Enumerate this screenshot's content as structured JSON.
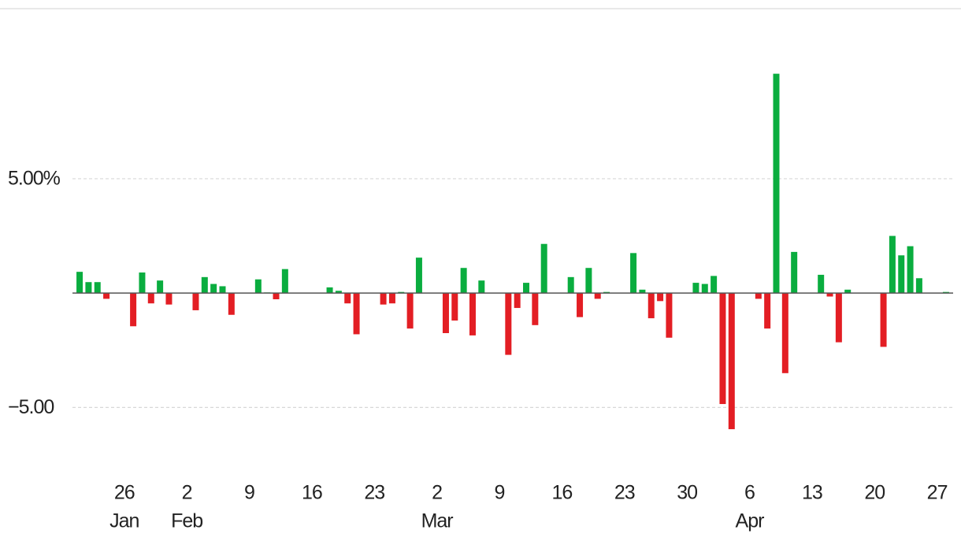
{
  "chart_data": {
    "type": "bar",
    "positive_color": "#0aad3f",
    "negative_color": "#e31e24",
    "x": [
      21,
      22,
      23,
      24,
      27,
      28,
      29,
      30,
      31,
      34,
      35,
      36,
      37,
      38,
      41,
      42,
      43,
      44,
      45,
      49,
      50,
      51,
      52,
      55,
      56,
      57,
      58,
      59,
      62,
      63,
      64,
      65,
      66,
      69,
      70,
      71,
      72,
      73,
      76,
      77,
      78,
      79,
      80,
      83,
      84,
      85,
      86,
      87,
      90,
      91,
      92,
      93,
      94,
      97,
      98,
      99,
      100,
      101,
      104,
      105,
      106,
      107,
      111,
      112,
      113,
      114,
      115,
      118
    ],
    "values": [
      0.93,
      0.48,
      0.48,
      -0.25,
      -1.45,
      0.9,
      -0.45,
      0.55,
      -0.5,
      -0.75,
      0.7,
      0.4,
      0.3,
      -0.95,
      0.6,
      0.03,
      -0.27,
      1.05,
      0.01,
      0.25,
      0.1,
      -0.45,
      -1.8,
      -0.5,
      -0.45,
      0.05,
      -1.55,
      1.55,
      -1.75,
      -1.2,
      1.1,
      -1.85,
      0.55,
      -2.7,
      -0.65,
      0.45,
      -1.4,
      2.15,
      0.7,
      -1.05,
      1.1,
      -0.25,
      0.05,
      1.75,
      0.15,
      -1.1,
      -0.35,
      -1.95,
      0.45,
      0.4,
      0.75,
      -4.85,
      -5.95,
      -0.25,
      -1.55,
      9.59,
      -3.5,
      1.8,
      0.8,
      -0.15,
      -2.15,
      0.15,
      -2.35,
      2.5,
      1.65,
      2.05,
      0.65,
      0.05
    ],
    "xlim": [
      20.2,
      118.8
    ],
    "xticks": [
      {
        "value": 26,
        "label": "26"
      },
      {
        "value": 33,
        "label": "2"
      },
      {
        "value": 40,
        "label": "9"
      },
      {
        "value": 47,
        "label": "16"
      },
      {
        "value": 54,
        "label": "23"
      },
      {
        "value": 61,
        "label": "2"
      },
      {
        "value": 68,
        "label": "9"
      },
      {
        "value": 75,
        "label": "16"
      },
      {
        "value": 82,
        "label": "23"
      },
      {
        "value": 89,
        "label": "30"
      },
      {
        "value": 96,
        "label": "6"
      },
      {
        "value": 103,
        "label": "13"
      },
      {
        "value": 110,
        "label": "20"
      },
      {
        "value": 117,
        "label": "27"
      }
    ],
    "month_labels": [
      {
        "value": 26,
        "label": "Jan"
      },
      {
        "value": 33,
        "label": "Feb"
      },
      {
        "value": 61,
        "label": "Mar"
      },
      {
        "value": 96,
        "label": "Apr"
      }
    ],
    "ylim": [
      -7.5,
      12.4
    ],
    "yticks": [
      {
        "value": 5,
        "label": "5.00%"
      },
      {
        "value": -5,
        "label": "−5.00"
      }
    ],
    "grid": true
  }
}
